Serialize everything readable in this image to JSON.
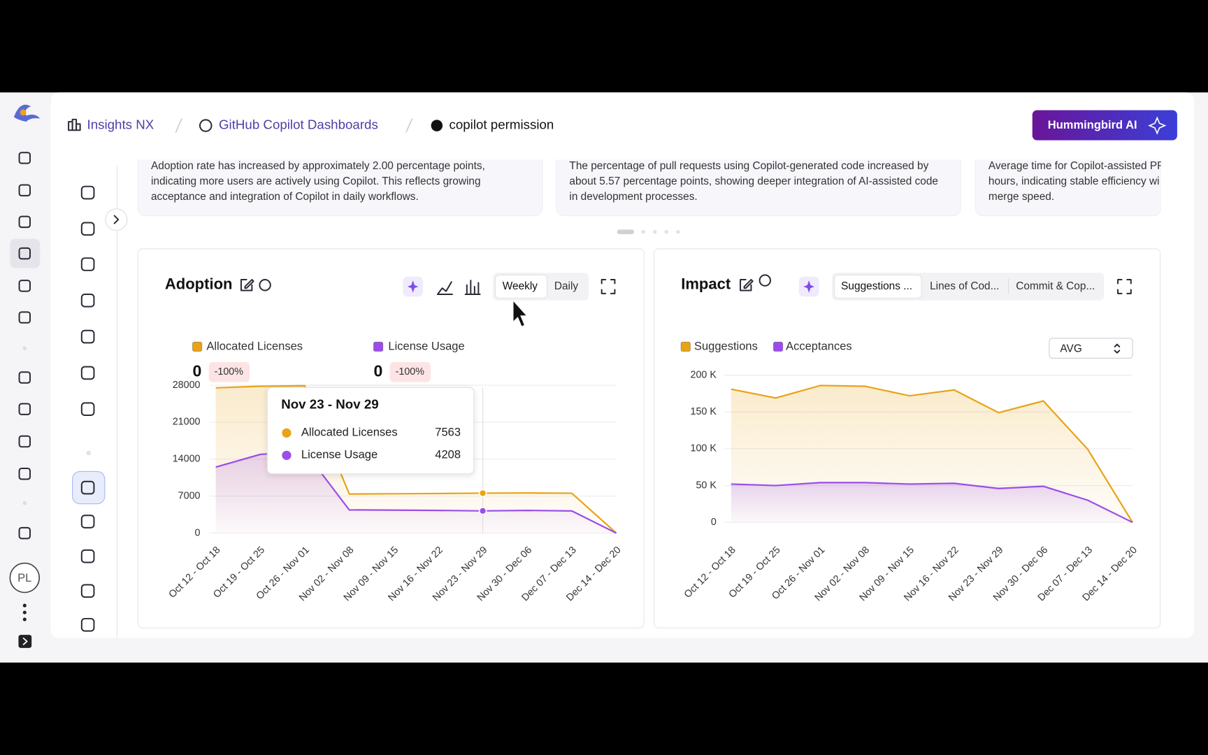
{
  "header": {
    "breadcrumbs": [
      "Insights NX",
      "GitHub Copilot Dashboards",
      "copilot permission"
    ],
    "button": "Hummingbird AI"
  },
  "user": {
    "initials": "PL"
  },
  "insights": [
    {
      "lines": [
        "Adoption rate has increased by approximately 2.00 percentage points,",
        "indicating more users are actively using Copilot. This reflects growing",
        "acceptance and integration of Copilot in daily workflows."
      ]
    },
    {
      "lines": [
        "The percentage of pull requests using Copilot-generated code increased by",
        "about 5.57 percentage points, showing deeper integration of AI-assisted code",
        "in development processes."
      ]
    },
    {
      "lines": [
        "Average time for Copilot-assisted PRs",
        "hours, indicating stable efficiency wi",
        "merge speed."
      ]
    }
  ],
  "chart_data": [
    {
      "type": "area",
      "title": "Adoption",
      "toggles": [
        "Weekly",
        "Daily"
      ],
      "categories": [
        "Oct 12 - Oct 18",
        "Oct 19 - Oct 25",
        "Oct 26 - Nov 01",
        "Nov 02 - Nov 08",
        "Nov 09 - Nov 15",
        "Nov 16 - Nov 22",
        "Nov 23 - Nov 29",
        "Nov 30 - Dec 06",
        "Dec 07 - Dec 13",
        "Dec 14 - Dec 20"
      ],
      "series": [
        {
          "name": "Allocated Licenses",
          "color": "#e8a317",
          "values": [
            27500,
            27800,
            27900,
            7400,
            7450,
            7500,
            7563,
            7600,
            7550,
            0
          ],
          "stat": 0,
          "change": "-100%"
        },
        {
          "name": "License Usage",
          "color": "#9b4dea",
          "values": [
            12500,
            14900,
            15500,
            4400,
            4350,
            4300,
            4208,
            4300,
            4200,
            0
          ],
          "stat": 0,
          "change": "-100%"
        }
      ],
      "ylim": [
        0,
        28000
      ],
      "yticks": [
        0,
        7000,
        14000,
        21000,
        28000
      ],
      "grid": true,
      "tooltip": {
        "title": "Nov 23 - Nov 29"
      }
    },
    {
      "type": "area",
      "title": "Impact",
      "tabs": [
        "Suggestions ...",
        "Lines of Cod...",
        "Commit & Cop..."
      ],
      "selector": "AVG",
      "categories": [
        "Oct 12 - Oct 18",
        "Oct 19 - Oct 25",
        "Oct 26 - Nov 01",
        "Nov 02 - Nov 08",
        "Nov 09 - Nov 15",
        "Nov 16 - Nov 22",
        "Nov 23 - Nov 29",
        "Nov 30 - Dec 06",
        "Dec 07 - Dec 13",
        "Dec 14 - Dec 20"
      ],
      "series": [
        {
          "name": "Suggestions",
          "color": "#e8a317",
          "values": [
            181000,
            169000,
            186000,
            185000,
            172000,
            180000,
            149000,
            165000,
            99000,
            0
          ]
        },
        {
          "name": "Acceptances",
          "color": "#9b4dea",
          "values": [
            52000,
            50000,
            54000,
            54000,
            52000,
            53000,
            46000,
            49000,
            30000,
            0
          ]
        }
      ],
      "ylim": [
        0,
        200000
      ],
      "yticks": [
        0,
        {
          "value": 50000,
          "label": "50 K"
        },
        {
          "value": 100000,
          "label": "100 K"
        },
        {
          "value": 150000,
          "label": "150 K"
        },
        {
          "value": 200000,
          "label": "200 K"
        }
      ],
      "grid": true
    }
  ]
}
